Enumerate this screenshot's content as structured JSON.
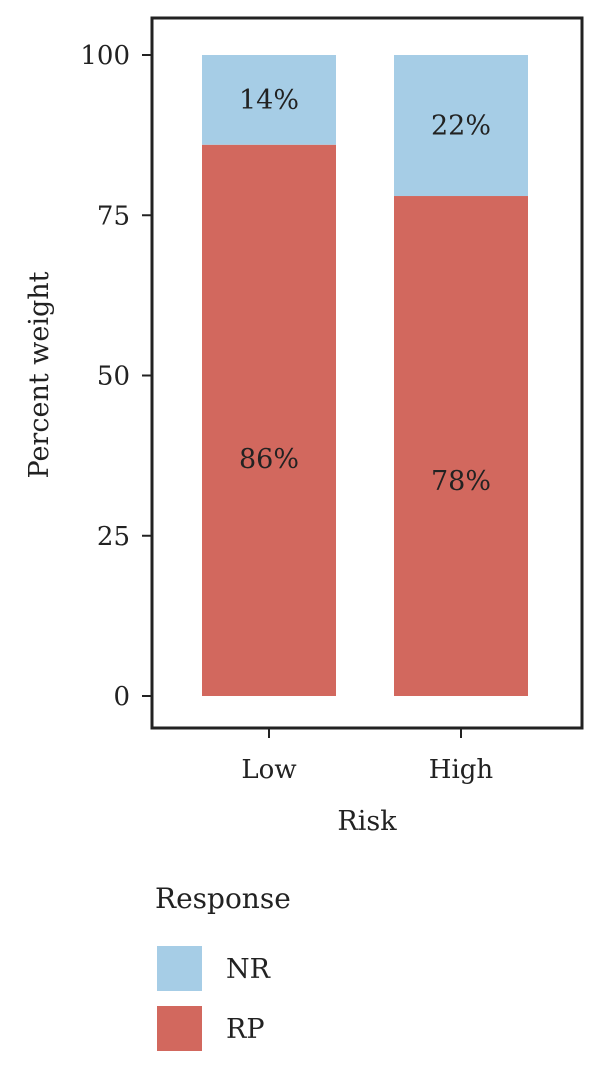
{
  "chart_data": {
    "type": "bar",
    "stacked": true,
    "categories": [
      "Low",
      "High"
    ],
    "series": [
      {
        "name": "RP",
        "values": [
          86,
          78
        ],
        "labels": [
          "86%",
          "78%"
        ],
        "color": "#d2685e"
      },
      {
        "name": "NR",
        "values": [
          14,
          22
        ],
        "labels": [
          "14%",
          "22%"
        ],
        "color": "#a6cde6"
      }
    ],
    "xlabel": "Risk",
    "ylabel": "Percent weight",
    "ylim": [
      0,
      100
    ],
    "yticks": [
      0,
      25,
      50,
      75,
      100
    ],
    "grid": false,
    "legend": {
      "title": "Response",
      "placement": "bottom",
      "entries": [
        {
          "name": "NR",
          "color": "#a6cde6"
        },
        {
          "name": "RP",
          "color": "#d2685e"
        }
      ]
    }
  }
}
